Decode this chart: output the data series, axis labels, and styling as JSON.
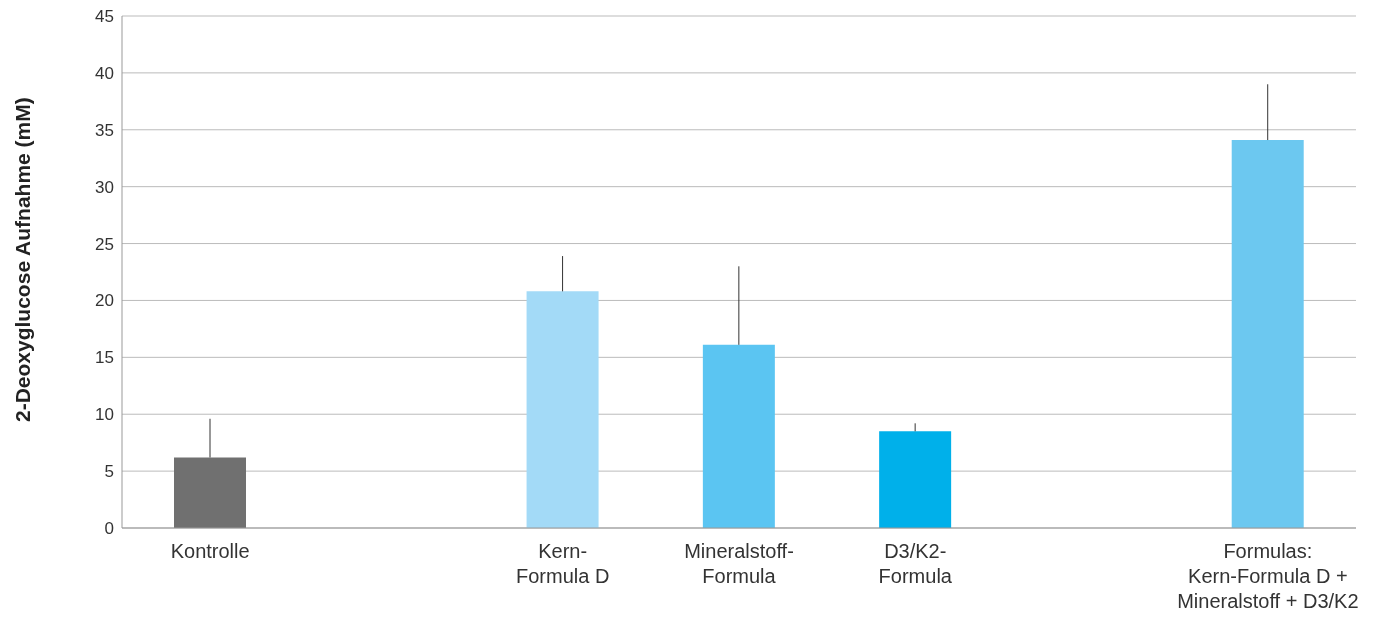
{
  "chart_data": {
    "type": "bar",
    "ylabel": "2-Deoxyglucose Aufnahme (mM)",
    "categories": [
      "Kontrolle",
      null,
      "Kern-\nFormula D",
      "Mineralstoff-\nFormula",
      "D3/K2-\nFormula",
      null,
      "Formulas:\nKern-Formula D +\nMineralstoff + D3/K2"
    ],
    "values": [
      6.2,
      null,
      20.8,
      16.1,
      8.5,
      null,
      34.1
    ],
    "colors": [
      "#707070",
      "#a3daf7",
      "#a3daf7",
      "#5bc5f2",
      "#00b0ea",
      "#00b0ea",
      "#6cc8f0"
    ],
    "errors": [
      [
        6.2,
        9.6
      ],
      null,
      [
        20.8,
        23.9
      ],
      [
        16.1,
        23.0
      ],
      [
        8.5,
        9.2
      ],
      null,
      [
        34.1,
        39.0
      ]
    ],
    "ylim": [
      0,
      45
    ],
    "yticks": [
      0,
      5,
      10,
      15,
      20,
      25,
      30,
      35,
      40,
      45
    ],
    "grid": "y"
  }
}
